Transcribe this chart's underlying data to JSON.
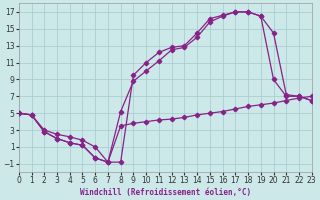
{
  "background_color": "#cce8e8",
  "grid_color": "#aacece",
  "line_color": "#882288",
  "xlim": [
    0,
    23
  ],
  "ylim": [
    -2,
    18
  ],
  "xticks": [
    0,
    1,
    2,
    3,
    4,
    5,
    6,
    7,
    8,
    9,
    10,
    11,
    12,
    13,
    14,
    15,
    16,
    17,
    18,
    19,
    20,
    21,
    22,
    23
  ],
  "yticks": [
    -1,
    1,
    3,
    5,
    7,
    9,
    11,
    13,
    15,
    17
  ],
  "xlabel": "Windchill (Refroidissement éolien,°C)",
  "curve1_x": [
    0,
    1,
    2,
    3,
    4,
    5,
    6,
    7,
    8,
    9,
    10,
    11,
    12,
    13,
    14,
    15,
    16,
    17,
    18,
    19,
    20,
    21,
    22,
    23
  ],
  "curve1_y": [
    5.0,
    4.8,
    3.0,
    2.5,
    2.2,
    1.8,
    1.0,
    -0.8,
    -0.8,
    9.5,
    11.0,
    12.2,
    12.8,
    13.0,
    14.5,
    16.2,
    16.6,
    17.0,
    17.0,
    16.5,
    14.5,
    7.2,
    7.0,
    6.5
  ],
  "curve2_x": [
    0,
    1,
    2,
    3,
    4,
    5,
    6,
    7,
    8,
    9,
    10,
    11,
    12,
    13,
    14,
    15,
    16,
    17,
    18,
    19,
    20,
    21,
    22,
    23
  ],
  "curve2_y": [
    5.0,
    4.8,
    2.8,
    2.0,
    1.5,
    1.2,
    -0.3,
    -0.8,
    5.2,
    8.8,
    10.0,
    11.2,
    12.5,
    12.8,
    14.0,
    15.8,
    16.5,
    17.0,
    17.0,
    16.5,
    9.0,
    7.0,
    7.0,
    6.5
  ],
  "curve3_x": [
    0,
    1,
    2,
    3,
    4,
    5,
    6,
    7,
    8,
    9,
    10,
    11,
    12,
    13,
    14,
    15,
    16,
    17,
    18,
    19,
    20,
    21,
    22,
    23
  ],
  "curve3_y": [
    5.0,
    4.8,
    2.8,
    2.0,
    1.5,
    1.2,
    -0.3,
    -0.8,
    3.5,
    3.8,
    4.0,
    4.2,
    4.3,
    4.5,
    4.8,
    5.0,
    5.2,
    5.5,
    5.8,
    6.0,
    6.2,
    6.5,
    6.8,
    7.0
  ],
  "tick_fontsize": 5.5,
  "xlabel_fontsize": 5.5,
  "linewidth": 0.9,
  "markersize": 2.3
}
